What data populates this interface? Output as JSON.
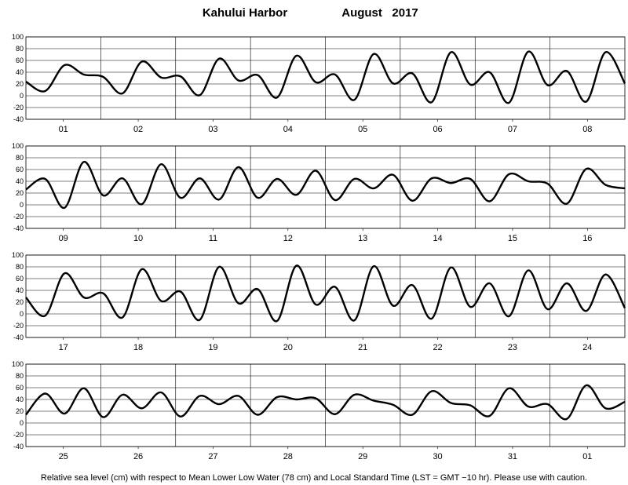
{
  "chart_data": {
    "type": "line",
    "title": {
      "station": "Kahului Harbor",
      "period": "August   2017"
    },
    "ylim": [
      -40,
      100
    ],
    "yticks": [
      -40,
      -20,
      0,
      20,
      40,
      60,
      80,
      100
    ],
    "grid": true,
    "footer": "Relative sea level (cm) with respect to Mean Lower Low Water (78 cm) and Local Standard Time (LST = GMT −10 hr). Please use with caution.",
    "panels": [
      {
        "days": [
          "01",
          "02",
          "03",
          "04",
          "05",
          "06",
          "07",
          "08"
        ],
        "values": [
          24,
          8,
          52,
          36,
          32,
          4,
          58,
          31,
          33,
          1,
          63,
          26,
          35,
          -3,
          68,
          23,
          36,
          -7,
          71,
          21,
          38,
          -11,
          74,
          19,
          40,
          -12,
          75,
          18,
          42,
          -10,
          74,
          21
        ]
      },
      {
        "days": [
          "09",
          "10",
          "11",
          "12",
          "13",
          "14",
          "15",
          "16"
        ],
        "values": [
          26,
          44,
          -5,
          73,
          16,
          45,
          1,
          69,
          12,
          45,
          9,
          64,
          12,
          44,
          17,
          58,
          8,
          44,
          28,
          51,
          7,
          45,
          37,
          44,
          6,
          52,
          40,
          36,
          2,
          61,
          34,
          28
        ]
      },
      {
        "days": [
          "17",
          "18",
          "19",
          "20",
          "21",
          "22",
          "23",
          "24"
        ],
        "values": [
          28,
          -3,
          69,
          28,
          35,
          -6,
          76,
          22,
          38,
          -10,
          80,
          18,
          42,
          -12,
          82,
          16,
          46,
          -11,
          81,
          14,
          49,
          -8,
          79,
          12,
          52,
          -4,
          74,
          8,
          52,
          5,
          67,
          10
        ]
      },
      {
        "days": [
          "25",
          "26",
          "27",
          "28",
          "29",
          "30",
          "31",
          "01"
        ],
        "values": [
          14,
          50,
          16,
          59,
          10,
          48,
          25,
          52,
          11,
          46,
          32,
          46,
          14,
          44,
          40,
          42,
          15,
          48,
          38,
          31,
          14,
          54,
          34,
          30,
          12,
          59,
          28,
          32,
          7,
          64,
          25,
          36
        ]
      }
    ]
  }
}
